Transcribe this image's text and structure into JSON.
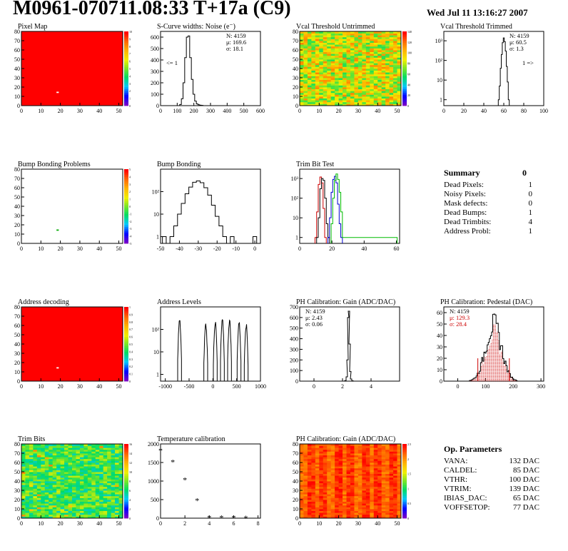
{
  "header": {
    "title": "M0961-070711.08:33 T+17a (C9)",
    "date": "Wed Jul 11 13:16:27 2007"
  },
  "colors": {
    "hist_line": "#000000",
    "red_series": "#cc0000",
    "green_series": "#00bb00",
    "blue_series": "#0000cc"
  },
  "chart_data": [
    {
      "id": "pixel-map",
      "type": "heatmap",
      "title": "Pixel Map",
      "x_ticks": [
        "0",
        "10",
        "20",
        "30",
        "40",
        "50"
      ],
      "y_ticks": [
        "0",
        "10",
        "20",
        "30",
        "40",
        "50",
        "60",
        "70",
        "80"
      ],
      "xlim": [
        0,
        52
      ],
      "ylim": [
        0,
        80
      ],
      "colorbar_ticks": [
        "0",
        "1",
        "2",
        "3",
        "4",
        "5",
        "6",
        "7",
        "8",
        "9",
        "10"
      ],
      "fill": "uniform-high",
      "note_pixel": [
        18,
        15
      ]
    },
    {
      "id": "scurve-noise",
      "type": "histogram",
      "title": "S-Curve widths: Noise (e⁻)",
      "stats": [
        "N: 4159",
        "μ: 169.6",
        "σ: 18.1"
      ],
      "annotations": [
        "<= 1"
      ],
      "x_ticks": [
        "0",
        "100",
        "200",
        "300",
        "400",
        "500",
        "600"
      ],
      "y_ticks": [
        "0",
        "100",
        "200",
        "300",
        "400",
        "500",
        "600"
      ],
      "xlim": [
        0,
        600
      ],
      "ylim": [
        0,
        650
      ],
      "x": [
        120,
        130,
        140,
        150,
        160,
        170,
        180,
        190,
        200,
        210,
        220,
        230,
        240,
        250
      ],
      "values": [
        10,
        60,
        200,
        420,
        600,
        610,
        420,
        230,
        100,
        40,
        15,
        8,
        4,
        2
      ]
    },
    {
      "id": "vcal-untrimmed",
      "type": "heatmap",
      "title": "Vcal Threshold Untrimmed",
      "x_ticks": [
        "0",
        "10",
        "20",
        "30",
        "40",
        "50"
      ],
      "y_ticks": [
        "0",
        "10",
        "20",
        "30",
        "40",
        "50",
        "60",
        "70",
        "80"
      ],
      "xlim": [
        0,
        52
      ],
      "ylim": [
        0,
        80
      ],
      "colorbar_ticks": [
        "0",
        "20",
        "40",
        "60",
        "80",
        "100",
        "120",
        "140"
      ],
      "fill": "noisy-mid"
    },
    {
      "id": "vcal-trimmed",
      "type": "histogram",
      "log": true,
      "title": "Vcal Threshold Trimmed",
      "stats": [
        "N: 4159",
        "μ: 60.5",
        "σ:  1.3"
      ],
      "annotations": [
        "1 =>"
      ],
      "x_ticks": [
        "0",
        "20",
        "40",
        "60",
        "80",
        "100"
      ],
      "y_ticks": [
        "1",
        "10",
        "10²",
        "10³"
      ],
      "xlim": [
        0,
        100
      ],
      "ylim": [
        0.5,
        3000
      ],
      "x": [
        55,
        56,
        57,
        58,
        59,
        60,
        61,
        62,
        63,
        64,
        65
      ],
      "values": [
        1,
        5,
        40,
        200,
        800,
        1400,
        900,
        300,
        50,
        8,
        1
      ]
    },
    {
      "id": "bump-bonding-problems",
      "type": "heatmap",
      "title": "Bump Bonding Problems",
      "x_ticks": [
        "0",
        "10",
        "20",
        "30",
        "40",
        "50"
      ],
      "y_ticks": [
        "0",
        "10",
        "20",
        "30",
        "40",
        "50",
        "60",
        "70",
        "80"
      ],
      "xlim": [
        0,
        52
      ],
      "ylim": [
        0,
        80
      ],
      "colorbar_ticks": [
        "-5",
        "-4",
        "-3",
        "-2",
        "-1",
        "0",
        "1",
        "2",
        "3",
        "4",
        "5"
      ],
      "fill": "empty",
      "note_pixel": [
        18,
        15
      ]
    },
    {
      "id": "bump-bonding",
      "type": "histogram",
      "log": true,
      "title": "Bump Bonding",
      "x_ticks": [
        "-50",
        "-40",
        "-30",
        "-20",
        "-10",
        "0"
      ],
      "y_ticks": [
        "1",
        "10",
        "10²"
      ],
      "xlim": [
        -50,
        3
      ],
      "ylim": [
        0.5,
        1000
      ],
      "x": [
        -48,
        -46,
        -44,
        -42,
        -40,
        -38,
        -36,
        -34,
        -32,
        -30,
        -28,
        -26,
        -24,
        -22,
        -20,
        -18,
        -16,
        -14,
        -12,
        -10,
        -8,
        -6,
        -4,
        -2,
        0
      ],
      "values": [
        1,
        0,
        1,
        3,
        10,
        30,
        80,
        160,
        260,
        300,
        250,
        150,
        70,
        25,
        8,
        3,
        1,
        0,
        1,
        0,
        0,
        0,
        0,
        0,
        1
      ]
    },
    {
      "id": "trim-bit-test",
      "type": "histogram",
      "log": true,
      "title": "Trim Bit Test",
      "x_ticks": [
        "0",
        "20",
        "40",
        "60"
      ],
      "y_ticks": [
        "1",
        "10",
        "10²",
        "10³"
      ],
      "xlim": [
        0,
        62
      ],
      "ylim": [
        0.5,
        3000
      ],
      "series": [
        {
          "color": "red",
          "x": [
            10,
            11,
            12,
            13,
            14,
            15,
            16
          ],
          "values": [
            1,
            20,
            500,
            1200,
            600,
            30,
            1
          ]
        },
        {
          "color": "black",
          "x": [
            11,
            12,
            13,
            14,
            15,
            16,
            17,
            18
          ],
          "values": [
            1,
            10,
            300,
            1000,
            800,
            100,
            5,
            1
          ]
        },
        {
          "color": "blue",
          "x": [
            18,
            19,
            20,
            21,
            22,
            23,
            24,
            25,
            26
          ],
          "values": [
            1,
            10,
            200,
            900,
            1300,
            600,
            50,
            5,
            1
          ]
        },
        {
          "color": "green",
          "x": [
            20,
            21,
            22,
            23,
            24,
            25,
            26,
            27,
            60
          ],
          "values": [
            5,
            100,
            800,
            1700,
            900,
            200,
            20,
            1,
            1
          ]
        }
      ]
    },
    {
      "id": "address-decoding",
      "type": "heatmap",
      "title": "Address decoding",
      "x_ticks": [
        "0",
        "10",
        "20",
        "30",
        "40",
        "50"
      ],
      "y_ticks": [
        "0",
        "10",
        "20",
        "30",
        "40",
        "50",
        "60",
        "70",
        "80"
      ],
      "xlim": [
        0,
        52
      ],
      "ylim": [
        0,
        80
      ],
      "colorbar_ticks": [
        "0",
        "0.1",
        "0.2",
        "0.3",
        "0.4",
        "0.5",
        "0.6",
        "0.7",
        "0.8",
        "0.9",
        "1"
      ],
      "fill": "uniform-high",
      "note_pixel": [
        18,
        15
      ]
    },
    {
      "id": "address-levels",
      "type": "histogram",
      "log": true,
      "title": "Address Levels",
      "x_ticks": [
        "-1000",
        "-500",
        "0",
        "500",
        "1000"
      ],
      "y_ticks": [
        "1",
        "10",
        "10²"
      ],
      "xlim": [
        -1100,
        1000
      ],
      "ylim": [
        0.5,
        1000
      ],
      "peaks": [
        -700,
        -150,
        50,
        200,
        350,
        550,
        700
      ],
      "peak_heights": [
        300,
        200,
        250,
        300,
        300,
        250,
        200
      ]
    },
    {
      "id": "ph-gain",
      "type": "histogram",
      "title": "PH Calibration: Gain (ADC/DAC)",
      "stats": [
        "N: 4159",
        "μ: 2.43",
        "σ: 0.06"
      ],
      "x_ticks": [
        "0",
        "2",
        "4"
      ],
      "y_ticks": [
        "0",
        "100",
        "200",
        "300",
        "400",
        "500",
        "600",
        "700"
      ],
      "xlim": [
        -1,
        6
      ],
      "ylim": [
        0,
        700
      ],
      "x": [
        2.2,
        2.3,
        2.35,
        2.4,
        2.45,
        2.5,
        2.55,
        2.6,
        2.7
      ],
      "values": [
        5,
        40,
        200,
        600,
        660,
        350,
        90,
        20,
        3
      ]
    },
    {
      "id": "ph-pedestal",
      "type": "histogram",
      "title": "PH Calibration: Pedestal (DAC)",
      "stats": [
        "N: 4159"
      ],
      "stats_red": [
        "μ: 129.3",
        "σ: 28.4"
      ],
      "x_ticks": [
        "0",
        "100",
        "200",
        "300"
      ],
      "y_ticks": [
        "0",
        "10",
        "20",
        "30",
        "40",
        "50",
        "60"
      ],
      "xlim": [
        -50,
        310
      ],
      "ylim": [
        0,
        65
      ],
      "mean": 129.3,
      "sigma": 28.4,
      "peak": 50
    },
    {
      "id": "trim-bits",
      "type": "heatmap",
      "title": "Trim Bits",
      "x_ticks": [
        "0",
        "10",
        "20",
        "30",
        "40",
        "50"
      ],
      "y_ticks": [
        "0",
        "10",
        "20",
        "30",
        "40",
        "50",
        "60",
        "70",
        "80"
      ],
      "xlim": [
        0,
        52
      ],
      "ylim": [
        0,
        80
      ],
      "colorbar_ticks": [
        "0",
        "2",
        "4",
        "6",
        "8",
        "10",
        "12",
        "14",
        "16"
      ],
      "fill": "noisy-low"
    },
    {
      "id": "temperature-calibration",
      "type": "scatter",
      "title": "Temperature calibration",
      "x_ticks": [
        "0",
        "2",
        "4",
        "6",
        "8"
      ],
      "y_ticks": [
        "0",
        "500",
        "1000",
        "1500",
        "2000"
      ],
      "xlim": [
        0,
        8.2
      ],
      "ylim": [
        0,
        2000
      ],
      "x": [
        0,
        1,
        2,
        3,
        4,
        5,
        6,
        7
      ],
      "values": [
        1820,
        1510,
        1030,
        470,
        5,
        10,
        5,
        0
      ]
    },
    {
      "id": "ph-gain-map",
      "type": "heatmap",
      "title": "PH Calibration: Gain (ADC/DAC)",
      "x_ticks": [
        "0",
        "10",
        "20",
        "30",
        "40",
        "50"
      ],
      "y_ticks": [
        "0",
        "10",
        "20",
        "30",
        "40",
        "50",
        "60",
        "70",
        "80"
      ],
      "xlim": [
        0,
        52
      ],
      "ylim": [
        0,
        80
      ],
      "colorbar_ticks": [
        "0",
        "0.5",
        "1",
        "1.5",
        "2",
        "2.5"
      ],
      "fill": "stripes-high"
    }
  ],
  "summary": {
    "title": "Summary",
    "total": "0",
    "rows": [
      {
        "label": "Dead Pixels:",
        "value": "1"
      },
      {
        "label": "Noisy Pixels:",
        "value": "0"
      },
      {
        "label": "Mask defects:",
        "value": "0"
      },
      {
        "label": "Dead Bumps:",
        "value": "1"
      },
      {
        "label": "Dead Trimbits:",
        "value": "4"
      },
      {
        "label": "Address Probl:",
        "value": "1"
      }
    ]
  },
  "op_parameters": {
    "title": "Op. Parameters",
    "rows": [
      {
        "label": "VANA:",
        "value": "132 DAC"
      },
      {
        "label": "CALDEL:",
        "value": "85 DAC"
      },
      {
        "label": "VTHR:",
        "value": "100 DAC"
      },
      {
        "label": "VTRIM:",
        "value": "139 DAC"
      },
      {
        "label": "IBIAS_DAC:",
        "value": "65 DAC"
      },
      {
        "label": "VOFFSETOP:",
        "value": "77 DAC"
      }
    ]
  }
}
